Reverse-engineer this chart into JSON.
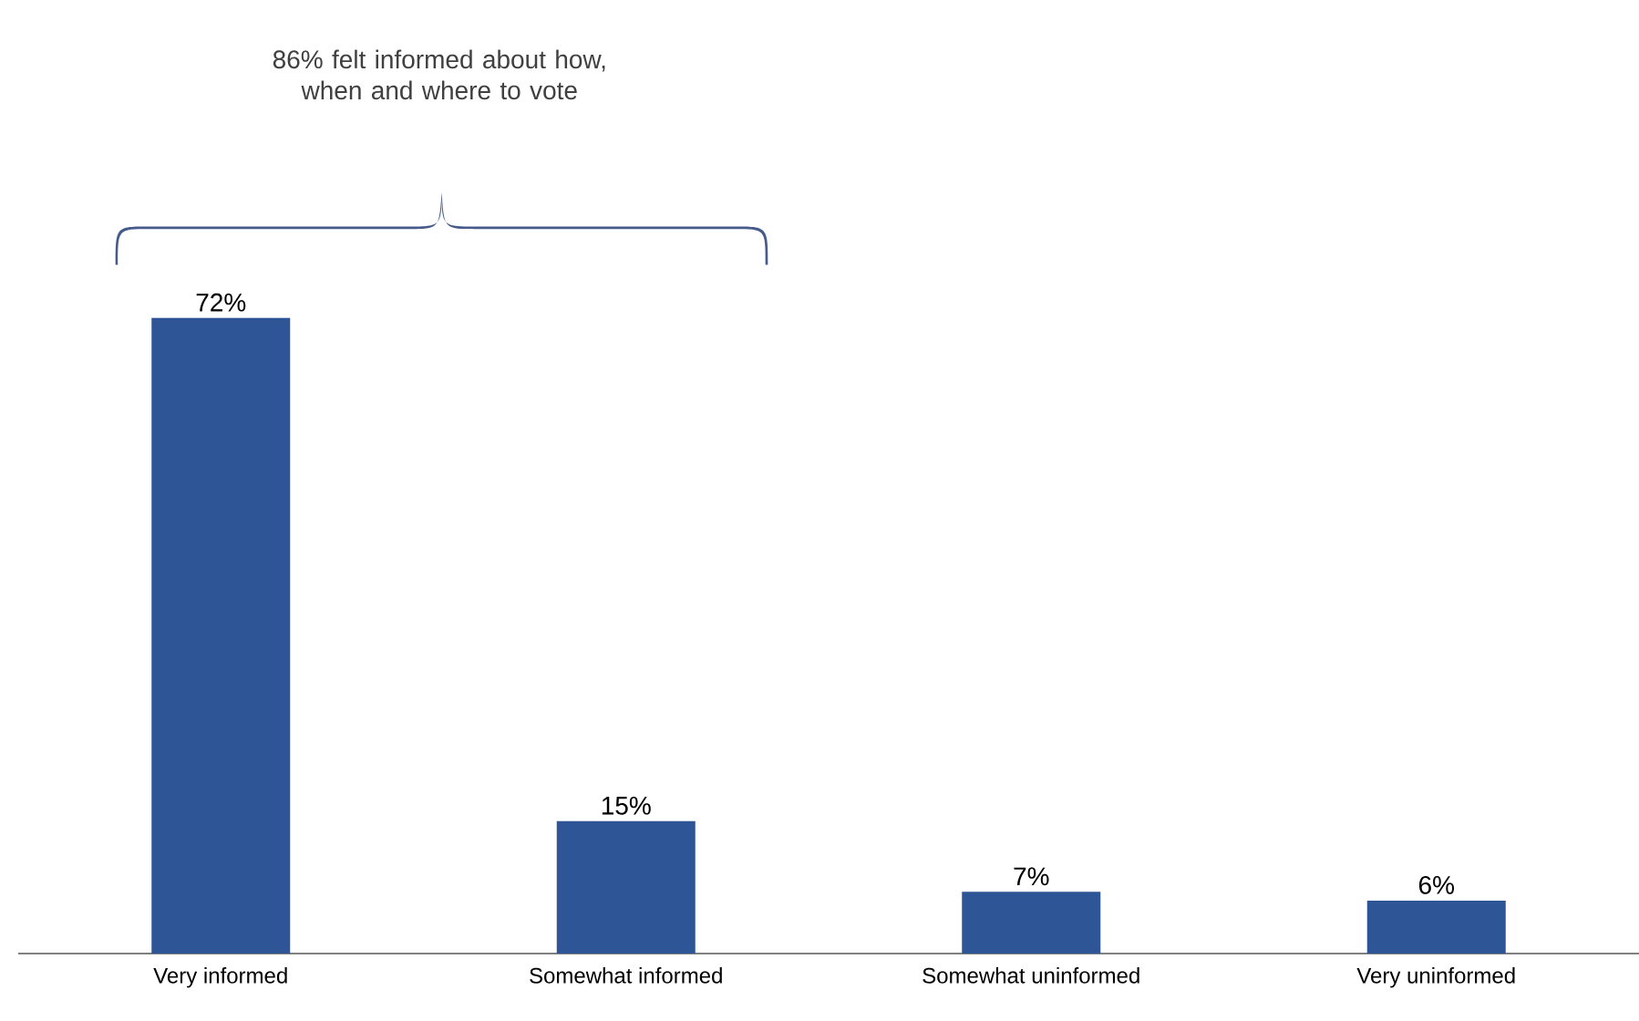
{
  "chart_data": {
    "type": "bar",
    "categories": [
      "Very informed",
      "Somewhat informed",
      "Somewhat uninformed",
      "Very uninformed"
    ],
    "values": [
      72,
      15,
      7,
      6
    ],
    "value_labels": [
      "72%",
      "15%",
      "7%",
      "6%"
    ],
    "color": "#2e5595",
    "annotations": [
      "86% felt informed about how, when and where to vote"
    ]
  }
}
